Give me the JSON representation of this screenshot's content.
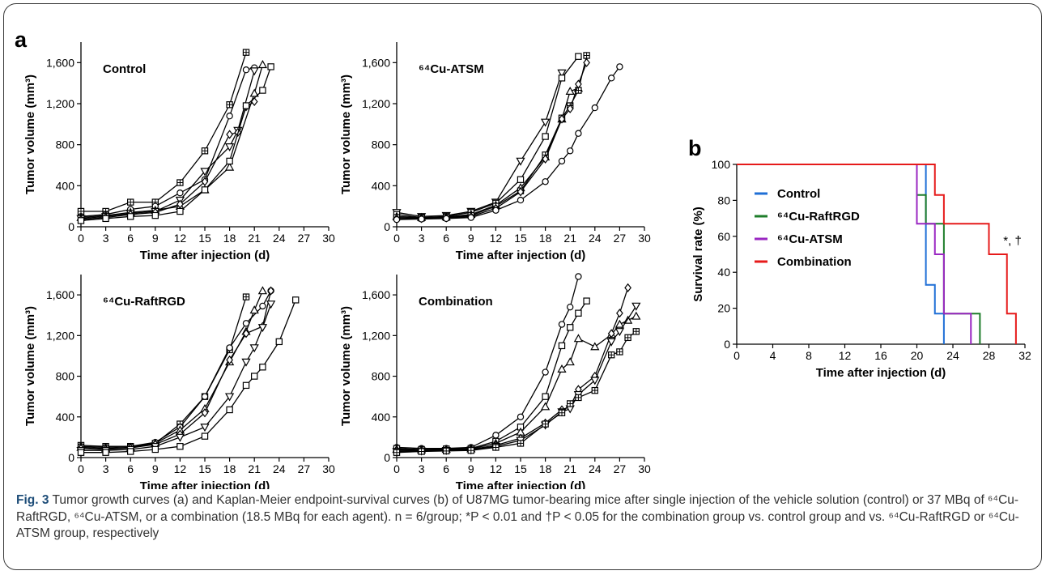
{
  "panel_labels": {
    "a": "a",
    "b": "b"
  },
  "caption": {
    "fig": "Fig. 3",
    "text": "Tumor growth curves (a) and Kaplan-Meier endpoint-survival curves (b) of U87MG tumor-bearing mice after single injection of the vehicle solution (control) or 37 MBq of ⁶⁴Cu-RaftRGD, ⁶⁴Cu-ATSM, or a combination (18.5 MBq for each agent). n = 6/group; *P < 0.01 and †P < 0.05 for the combination group vs. control group and vs. ⁶⁴Cu-RaftRGD or ⁶⁴Cu-ATSM group, respectively"
  },
  "chart_data": [
    {
      "type": "line",
      "panel": "a",
      "title": "Control",
      "xlabel": "Time after injection (d)",
      "ylabel": "Tumor volume (mm³)",
      "xlim": [
        0,
        30
      ],
      "ylim": [
        0,
        1800
      ],
      "xticks": [
        0,
        3,
        6,
        9,
        12,
        15,
        18,
        21,
        24,
        27,
        30
      ],
      "yticks": [
        0,
        400,
        800,
        1200,
        1600
      ],
      "ytick_labels": [
        "0",
        "400",
        "800",
        "1,200",
        "1,600"
      ],
      "series": [
        {
          "marker": "square-plus",
          "x": [
            0,
            3,
            6,
            9,
            12,
            15,
            18,
            20
          ],
          "y": [
            150,
            150,
            240,
            240,
            430,
            740,
            1190,
            1700
          ]
        },
        {
          "marker": "circle",
          "x": [
            0,
            3,
            6,
            9,
            12,
            15,
            18,
            20,
            21
          ],
          "y": [
            100,
            120,
            170,
            200,
            330,
            460,
            1080,
            1530,
            1550
          ]
        },
        {
          "marker": "triangle",
          "x": [
            0,
            3,
            6,
            9,
            12,
            15,
            18,
            21,
            22
          ],
          "y": [
            90,
            110,
            140,
            160,
            200,
            360,
            580,
            1300,
            1580
          ]
        },
        {
          "marker": "triangle-down",
          "x": [
            0,
            3,
            6,
            9,
            12,
            15,
            18,
            19,
            21
          ],
          "y": [
            80,
            100,
            130,
            150,
            260,
            540,
            780,
            940,
            1520
          ]
        },
        {
          "marker": "diamond",
          "x": [
            0,
            3,
            6,
            9,
            12,
            15,
            18,
            19,
            20,
            21
          ],
          "y": [
            70,
            90,
            120,
            140,
            220,
            440,
            900,
            920,
            1170,
            1220
          ]
        },
        {
          "marker": "square",
          "x": [
            0,
            3,
            6,
            9,
            12,
            15,
            18,
            20,
            22,
            23
          ],
          "y": [
            60,
            80,
            100,
            110,
            150,
            360,
            640,
            1180,
            1330,
            1560
          ]
        }
      ]
    },
    {
      "type": "line",
      "panel": "a",
      "title": "⁶⁴Cu-ATSM",
      "xlabel": "Time after injection (d)",
      "ylabel": "Tumor volume (mm³)",
      "xlim": [
        0,
        30
      ],
      "ylim": [
        0,
        1800
      ],
      "xticks": [
        0,
        3,
        6,
        9,
        12,
        15,
        18,
        21,
        24,
        27,
        30
      ],
      "yticks": [
        0,
        400,
        800,
        1200,
        1600
      ],
      "ytick_labels": [
        "0",
        "400",
        "800",
        "1,200",
        "1,600"
      ],
      "series": [
        {
          "marker": "triangle-down",
          "x": [
            0,
            3,
            6,
            9,
            12,
            15,
            18,
            20
          ],
          "y": [
            140,
            100,
            110,
            150,
            240,
            640,
            1020,
            1500
          ]
        },
        {
          "marker": "square",
          "x": [
            0,
            3,
            6,
            9,
            12,
            15,
            18,
            20,
            22
          ],
          "y": [
            120,
            90,
            100,
            140,
            230,
            460,
            880,
            1450,
            1660
          ]
        },
        {
          "marker": "triangle",
          "x": [
            0,
            3,
            6,
            9,
            12,
            15,
            18,
            20,
            21,
            22
          ],
          "y": [
            100,
            90,
            95,
            120,
            210,
            380,
            680,
            1050,
            1320,
            1350
          ]
        },
        {
          "marker": "square-plus",
          "x": [
            0,
            3,
            6,
            9,
            12,
            15,
            18,
            20,
            21,
            22,
            23
          ],
          "y": [
            90,
            85,
            90,
            110,
            200,
            350,
            700,
            1060,
            1180,
            1330,
            1670
          ]
        },
        {
          "marker": "diamond",
          "x": [
            0,
            3,
            6,
            9,
            12,
            15,
            18,
            20,
            21,
            22,
            23
          ],
          "y": [
            80,
            80,
            85,
            100,
            180,
            340,
            660,
            1050,
            1150,
            1390,
            1600
          ]
        },
        {
          "marker": "circle",
          "x": [
            0,
            3,
            6,
            9,
            12,
            15,
            18,
            20,
            21,
            22,
            24,
            26,
            27
          ],
          "y": [
            70,
            75,
            80,
            90,
            160,
            260,
            440,
            640,
            740,
            910,
            1160,
            1450,
            1560
          ]
        }
      ]
    },
    {
      "type": "line",
      "panel": "a",
      "title": "⁶⁴Cu-RaftRGD",
      "xlabel": "Time after injection (d)",
      "ylabel": "Tumor volume (mm³)",
      "xlim": [
        0,
        30
      ],
      "ylim": [
        0,
        1800
      ],
      "xticks": [
        0,
        3,
        6,
        9,
        12,
        15,
        18,
        21,
        24,
        27,
        30
      ],
      "yticks": [
        0,
        400,
        800,
        1200,
        1600
      ],
      "ytick_labels": [
        "0",
        "400",
        "800",
        "1,200",
        "1,600"
      ],
      "series": [
        {
          "marker": "square-plus",
          "x": [
            0,
            3,
            6,
            9,
            12,
            15,
            18,
            20
          ],
          "y": [
            120,
            110,
            110,
            140,
            330,
            600,
            1060,
            1580
          ]
        },
        {
          "marker": "circle",
          "x": [
            0,
            3,
            6,
            9,
            12,
            15,
            18,
            20,
            22,
            23
          ],
          "y": [
            110,
            100,
            110,
            150,
            300,
            600,
            1080,
            1320,
            1490,
            1640
          ]
        },
        {
          "marker": "triangle",
          "x": [
            0,
            3,
            6,
            9,
            12,
            15,
            18,
            20,
            21,
            22
          ],
          "y": [
            100,
            90,
            100,
            140,
            270,
            480,
            940,
            1240,
            1450,
            1640
          ]
        },
        {
          "marker": "diamond",
          "x": [
            0,
            3,
            6,
            9,
            12,
            15,
            18,
            20,
            22,
            23
          ],
          "y": [
            90,
            80,
            95,
            130,
            230,
            440,
            960,
            1220,
            1290,
            1640
          ]
        },
        {
          "marker": "triangle-down",
          "x": [
            0,
            3,
            6,
            9,
            12,
            15,
            18,
            20,
            21,
            22,
            23
          ],
          "y": [
            70,
            70,
            80,
            110,
            200,
            300,
            600,
            940,
            1080,
            1280,
            1510
          ]
        },
        {
          "marker": "square",
          "x": [
            0,
            3,
            6,
            9,
            12,
            15,
            18,
            20,
            21,
            22,
            24,
            26
          ],
          "y": [
            50,
            50,
            60,
            80,
            110,
            210,
            470,
            710,
            800,
            890,
            1140,
            1550
          ]
        }
      ]
    },
    {
      "type": "line",
      "panel": "a",
      "title": "Combination",
      "xlabel": "Time after injection (d)",
      "ylabel": "Tumor volume (mm³)",
      "xlim": [
        0,
        30
      ],
      "ylim": [
        0,
        1800
      ],
      "xticks": [
        0,
        3,
        6,
        9,
        12,
        15,
        18,
        21,
        24,
        27,
        30
      ],
      "yticks": [
        0,
        400,
        800,
        1200,
        1600
      ],
      "ytick_labels": [
        "0",
        "400",
        "800",
        "1,200",
        "1,600"
      ],
      "series": [
        {
          "marker": "circle",
          "x": [
            0,
            3,
            6,
            9,
            12,
            15,
            18,
            20,
            21,
            22
          ],
          "y": [
            100,
            90,
            90,
            100,
            220,
            400,
            840,
            1310,
            1480,
            1780
          ]
        },
        {
          "marker": "square",
          "x": [
            0,
            3,
            6,
            9,
            12,
            15,
            18,
            20,
            21,
            22,
            23
          ],
          "y": [
            90,
            80,
            85,
            90,
            160,
            300,
            600,
            1100,
            1280,
            1420,
            1540
          ]
        },
        {
          "marker": "triangle",
          "x": [
            0,
            3,
            6,
            9,
            12,
            15,
            18,
            20,
            21,
            22,
            24,
            26,
            27,
            28,
            29
          ],
          "y": [
            80,
            75,
            80,
            85,
            140,
            250,
            500,
            870,
            940,
            1170,
            1090,
            1210,
            1310,
            1350,
            1390
          ]
        },
        {
          "marker": "diamond",
          "x": [
            0,
            3,
            6,
            9,
            12,
            15,
            18,
            20,
            21,
            22,
            24,
            26,
            27,
            28
          ],
          "y": [
            70,
            70,
            75,
            80,
            120,
            190,
            340,
            470,
            500,
            670,
            800,
            1220,
            1420,
            1670
          ]
        },
        {
          "marker": "triangle-down",
          "x": [
            0,
            3,
            6,
            9,
            12,
            15,
            18,
            20,
            21,
            22,
            24,
            26,
            27,
            29
          ],
          "y": [
            60,
            65,
            70,
            75,
            110,
            170,
            320,
            450,
            480,
            620,
            760,
            1140,
            1240,
            1490
          ]
        },
        {
          "marker": "square-plus",
          "x": [
            0,
            3,
            6,
            9,
            12,
            15,
            18,
            20,
            21,
            22,
            24,
            26,
            27,
            28,
            29
          ],
          "y": [
            50,
            60,
            65,
            70,
            100,
            140,
            330,
            440,
            530,
            590,
            660,
            1010,
            1040,
            1180,
            1240
          ]
        }
      ]
    },
    {
      "type": "line",
      "panel": "b",
      "step": true,
      "xlabel": "Time after injection (d)",
      "ylabel": "Survival rate (%)",
      "xlim": [
        0,
        32
      ],
      "ylim": [
        0,
        100
      ],
      "xticks": [
        0,
        4,
        8,
        12,
        16,
        20,
        24,
        28,
        32
      ],
      "yticks": [
        0,
        20,
        40,
        60,
        80,
        100
      ],
      "legend_position": "top-left",
      "annotation": "*, †",
      "series": [
        {
          "name": "Control",
          "color": "#1f6fd6",
          "x": [
            0,
            21,
            22,
            23
          ],
          "y": [
            100,
            33,
            17,
            0
          ]
        },
        {
          "name": "⁶⁴Cu-RaftRGD",
          "color": "#1e7d2a",
          "x": [
            0,
            20,
            21,
            23,
            27
          ],
          "y": [
            100,
            83,
            67,
            17,
            0
          ]
        },
        {
          "name": "⁶⁴Cu-ATSM",
          "color": "#9a27c2",
          "x": [
            0,
            20,
            22,
            23,
            26
          ],
          "y": [
            100,
            67,
            50,
            17,
            0
          ]
        },
        {
          "name": "Combination",
          "color": "#e61a1a",
          "x": [
            0,
            22,
            23,
            28,
            30,
            31
          ],
          "y": [
            100,
            83,
            67,
            50,
            17,
            0
          ]
        }
      ]
    }
  ]
}
